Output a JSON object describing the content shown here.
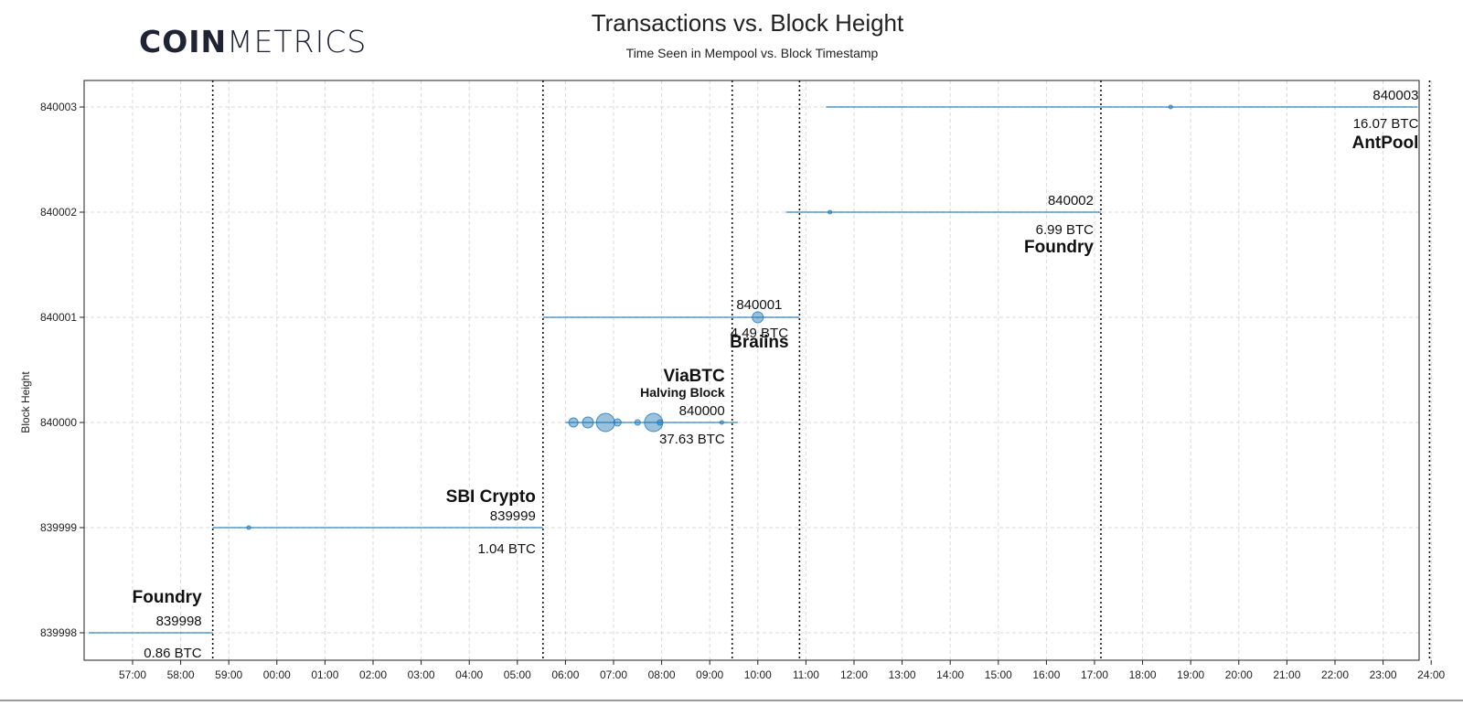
{
  "logo": {
    "bold": "COIN",
    "light": "METRICS"
  },
  "colors": {
    "point": "#1f77b4",
    "grid": "#d9d9d9",
    "axis": "#222222",
    "vline": "#111111"
  },
  "chart_data": {
    "type": "scatter",
    "title": "Transactions vs. Block Height",
    "subtitle": "Time Seen in Mempool vs. Block Timestamp",
    "xlabel": "",
    "ylabel": "Block Height",
    "x_unit": "minute:second",
    "x_ticks": [
      "57:00",
      "58:00",
      "59:00",
      "00:00",
      "01:00",
      "02:00",
      "03:00",
      "04:00",
      "05:00",
      "06:00",
      "07:00",
      "08:00",
      "09:00",
      "10:00",
      "11:00",
      "12:00",
      "13:00",
      "14:00",
      "15:00",
      "16:00",
      "17:00",
      "18:00",
      "19:00",
      "20:00",
      "21:00",
      "22:00",
      "23:00",
      "24:00"
    ],
    "y_ticks": [
      "839998",
      "839999",
      "840000",
      "840001",
      "840002",
      "840003"
    ],
    "grid": true,
    "block_times": [
      "58:40",
      "05:32",
      "09:28",
      "10:52",
      "17:08",
      "23:58"
    ],
    "segments": [
      {
        "block": "839998",
        "from": "56:05",
        "to": "58:40"
      },
      {
        "block": "839999",
        "from": "58:40",
        "to": "05:32"
      },
      {
        "block": "840000",
        "from": "06:00",
        "to": "09:35"
      },
      {
        "block": "840001",
        "from": "05:32",
        "to": "10:52"
      },
      {
        "block": "840002",
        "from": "10:35",
        "to": "17:08"
      },
      {
        "block": "840003",
        "from": "11:25",
        "to": "24:08"
      }
    ],
    "bubbles": [
      {
        "block": "840000",
        "t": "06:10",
        "size": 5
      },
      {
        "block": "840000",
        "t": "06:28",
        "size": 6
      },
      {
        "block": "840000",
        "t": "06:50",
        "size": 10
      },
      {
        "block": "840000",
        "t": "07:05",
        "size": 4
      },
      {
        "block": "840000",
        "t": "07:30",
        "size": 3
      },
      {
        "block": "840000",
        "t": "07:50",
        "size": 10
      },
      {
        "block": "840000",
        "t": "07:58",
        "size": 3
      },
      {
        "block": "840000",
        "t": "09:15",
        "size": 2
      },
      {
        "block": "840001",
        "t": "10:00",
        "size": 6
      },
      {
        "block": "840002",
        "t": "11:30",
        "size": 2
      },
      {
        "block": "840003",
        "t": "18:35",
        "size": 2
      },
      {
        "block": "839999",
        "t": "59:25",
        "size": 2
      }
    ],
    "annotations": [
      {
        "block": "839998",
        "pool": "Foundry",
        "height": "839998",
        "reward": "0.86 BTC"
      },
      {
        "block": "839999",
        "pool": "SBI Crypto",
        "height": "839999",
        "reward": "1.04 BTC"
      },
      {
        "block": "840000",
        "pool": "ViaBTC",
        "note": "Halving Block",
        "height": "840000",
        "reward": "37.63 BTC"
      },
      {
        "block": "840001",
        "pool": "Braiins",
        "height": "840001",
        "reward": "4.49 BTC"
      },
      {
        "block": "840002",
        "pool": "Foundry",
        "height": "840002",
        "reward": "6.99 BTC"
      },
      {
        "block": "840003",
        "pool": "AntPool",
        "height": "840003",
        "reward": "16.07 BTC"
      }
    ]
  }
}
